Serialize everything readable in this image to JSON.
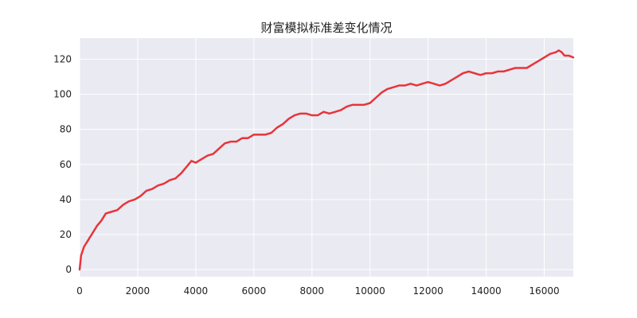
{
  "chart_data": {
    "type": "line",
    "title": "财富模拟标准差变化情况",
    "xlabel": "",
    "ylabel": "",
    "xlim": [
      0,
      17000
    ],
    "ylim": [
      -4,
      132
    ],
    "x_ticks": [
      0,
      2000,
      4000,
      6000,
      8000,
      10000,
      12000,
      14000,
      16000
    ],
    "y_ticks": [
      0,
      20,
      40,
      60,
      80,
      100,
      120
    ],
    "x_tick_labels": [
      "0",
      "2000",
      "4000",
      "6000",
      "8000",
      "10000",
      "12000",
      "14000",
      "16000"
    ],
    "y_tick_labels": [
      "0",
      "20",
      "40",
      "60",
      "80",
      "100",
      "120"
    ],
    "grid": true,
    "background_color": "#eaeaf2",
    "grid_color": "#ffffff",
    "series": [
      {
        "color": "#e8343a",
        "points": [
          [
            0,
            0
          ],
          [
            50,
            8
          ],
          [
            150,
            13
          ],
          [
            300,
            17
          ],
          [
            450,
            21
          ],
          [
            600,
            25
          ],
          [
            750,
            28
          ],
          [
            900,
            32
          ],
          [
            1100,
            33
          ],
          [
            1300,
            34
          ],
          [
            1500,
            37
          ],
          [
            1700,
            39
          ],
          [
            1900,
            40
          ],
          [
            2100,
            42
          ],
          [
            2300,
            45
          ],
          [
            2500,
            46
          ],
          [
            2700,
            48
          ],
          [
            2900,
            49
          ],
          [
            3100,
            51
          ],
          [
            3300,
            52
          ],
          [
            3500,
            55
          ],
          [
            3700,
            59
          ],
          [
            3850,
            62
          ],
          [
            4000,
            61
          ],
          [
            4200,
            63
          ],
          [
            4400,
            65
          ],
          [
            4600,
            66
          ],
          [
            4800,
            69
          ],
          [
            5000,
            72
          ],
          [
            5200,
            73
          ],
          [
            5400,
            73
          ],
          [
            5600,
            75
          ],
          [
            5800,
            75
          ],
          [
            6000,
            77
          ],
          [
            6200,
            77
          ],
          [
            6400,
            77
          ],
          [
            6600,
            78
          ],
          [
            6800,
            81
          ],
          [
            7000,
            83
          ],
          [
            7200,
            86
          ],
          [
            7400,
            88
          ],
          [
            7600,
            89
          ],
          [
            7800,
            89
          ],
          [
            8000,
            88
          ],
          [
            8200,
            88
          ],
          [
            8400,
            90
          ],
          [
            8600,
            89
          ],
          [
            8800,
            90
          ],
          [
            9000,
            91
          ],
          [
            9200,
            93
          ],
          [
            9400,
            94
          ],
          [
            9600,
            94
          ],
          [
            9800,
            94
          ],
          [
            10000,
            95
          ],
          [
            10200,
            98
          ],
          [
            10400,
            101
          ],
          [
            10600,
            103
          ],
          [
            10800,
            104
          ],
          [
            11000,
            105
          ],
          [
            11200,
            105
          ],
          [
            11400,
            106
          ],
          [
            11600,
            105
          ],
          [
            11800,
            106
          ],
          [
            12000,
            107
          ],
          [
            12200,
            106
          ],
          [
            12400,
            105
          ],
          [
            12600,
            106
          ],
          [
            12800,
            108
          ],
          [
            13000,
            110
          ],
          [
            13200,
            112
          ],
          [
            13400,
            113
          ],
          [
            13600,
            112
          ],
          [
            13800,
            111
          ],
          [
            14000,
            112
          ],
          [
            14200,
            112
          ],
          [
            14400,
            113
          ],
          [
            14600,
            113
          ],
          [
            14800,
            114
          ],
          [
            15000,
            115
          ],
          [
            15200,
            115
          ],
          [
            15400,
            115
          ],
          [
            15600,
            117
          ],
          [
            15800,
            119
          ],
          [
            16000,
            121
          ],
          [
            16200,
            123
          ],
          [
            16400,
            124
          ],
          [
            16500,
            125
          ],
          [
            16600,
            124
          ],
          [
            16700,
            122
          ],
          [
            16850,
            122
          ],
          [
            17000,
            121
          ]
        ]
      }
    ]
  }
}
